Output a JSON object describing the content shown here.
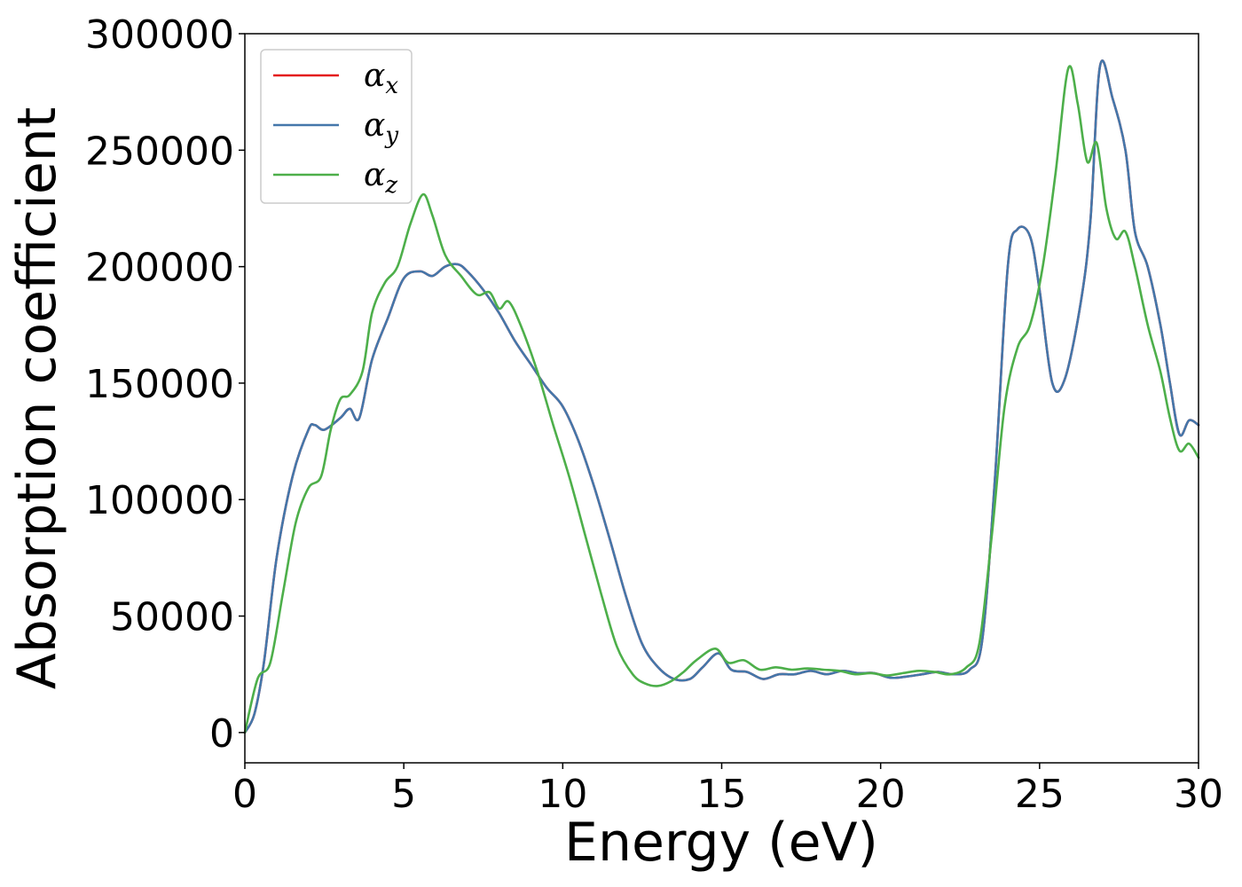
{
  "chart_data": {
    "type": "line",
    "xlabel": "Energy (eV)",
    "ylabel": "Absorption coefficient",
    "xlim": [
      0,
      30
    ],
    "ylim": [
      -13000,
      300000
    ],
    "xticks": [
      0,
      5,
      10,
      15,
      20,
      25,
      30
    ],
    "yticks": [
      0,
      50000,
      100000,
      150000,
      200000,
      250000,
      300000
    ],
    "grid": false,
    "legend_position": "top-left",
    "series": [
      {
        "name": "αx",
        "symbol": "α",
        "subscript": "x",
        "color": "#e41a1c",
        "x": [
          0,
          0.3,
          0.6,
          1,
          1.5,
          2,
          2.2,
          2.5,
          3,
          3.3,
          3.6,
          4,
          4.5,
          5,
          5.5,
          5.9,
          6.3,
          6.7,
          7,
          7.5,
          8,
          8.5,
          9,
          9.5,
          10,
          10.5,
          11,
          11.5,
          12,
          12.5,
          13,
          13.5,
          14,
          14.4,
          14.9,
          15.3,
          15.8,
          16.3,
          16.8,
          17.3,
          17.8,
          18.3,
          18.8,
          19.3,
          19.8,
          20.3,
          20.8,
          21.3,
          21.8,
          22.3,
          22.8,
          23.2,
          23.6,
          24,
          24.3,
          24.7,
          25,
          25.4,
          25.8,
          26.3,
          26.6,
          26.9,
          27.3,
          27.7,
          28,
          28.4,
          28.8,
          29.1,
          29.4,
          29.7,
          30
        ],
        "y": [
          0,
          8000,
          30000,
          75000,
          110000,
          130000,
          132000,
          130000,
          135000,
          139000,
          135000,
          160000,
          178000,
          195000,
          198000,
          196000,
          200000,
          201000,
          198000,
          190000,
          180000,
          168000,
          158000,
          148000,
          140000,
          125000,
          105000,
          82000,
          58000,
          38000,
          28000,
          23000,
          23000,
          28000,
          34000,
          27000,
          26000,
          23000,
          25000,
          25000,
          26500,
          25000,
          26500,
          25500,
          25500,
          23500,
          24000,
          25000,
          26000,
          25000,
          27000,
          40000,
          110000,
          200000,
          216000,
          213000,
          190000,
          150000,
          152000,
          185000,
          220000,
          286000,
          272000,
          250000,
          215000,
          200000,
          175000,
          150000,
          128000,
          134000,
          132000
        ]
      },
      {
        "name": "αy",
        "symbol": "α",
        "subscript": "y",
        "color": "#4477aa",
        "x": [
          0,
          0.3,
          0.6,
          1,
          1.5,
          2,
          2.2,
          2.5,
          3,
          3.3,
          3.6,
          4,
          4.5,
          5,
          5.5,
          5.9,
          6.3,
          6.7,
          7,
          7.5,
          8,
          8.5,
          9,
          9.5,
          10,
          10.5,
          11,
          11.5,
          12,
          12.5,
          13,
          13.5,
          14,
          14.4,
          14.9,
          15.3,
          15.8,
          16.3,
          16.8,
          17.3,
          17.8,
          18.3,
          18.8,
          19.3,
          19.8,
          20.3,
          20.8,
          21.3,
          21.8,
          22.3,
          22.8,
          23.2,
          23.6,
          24,
          24.3,
          24.7,
          25,
          25.4,
          25.8,
          26.3,
          26.6,
          26.9,
          27.3,
          27.7,
          28,
          28.4,
          28.8,
          29.1,
          29.4,
          29.7,
          30
        ],
        "y": [
          0,
          8000,
          30000,
          75000,
          110000,
          130000,
          132000,
          130000,
          135000,
          139000,
          135000,
          160000,
          178000,
          195000,
          198000,
          196000,
          200000,
          201000,
          198000,
          190000,
          180000,
          168000,
          158000,
          148000,
          140000,
          125000,
          105000,
          82000,
          58000,
          38000,
          28000,
          23000,
          23000,
          28000,
          34000,
          27000,
          26000,
          23000,
          25000,
          25000,
          26500,
          25000,
          26500,
          25500,
          25500,
          23500,
          24000,
          25000,
          26000,
          25000,
          27000,
          40000,
          110000,
          200000,
          216000,
          213000,
          190000,
          150000,
          152000,
          185000,
          220000,
          286000,
          272000,
          250000,
          215000,
          200000,
          175000,
          150000,
          128000,
          134000,
          132000
        ]
      },
      {
        "name": "αz",
        "symbol": "α",
        "subscript": "z",
        "color": "#4daf4a",
        "x": [
          0,
          0.4,
          0.8,
          1.2,
          1.6,
          2,
          2.4,
          2.7,
          3,
          3.3,
          3.7,
          4,
          4.4,
          4.8,
          5.2,
          5.6,
          5.9,
          6.3,
          6.8,
          7.3,
          7.7,
          8,
          8.3,
          8.7,
          9.2,
          9.7,
          10.2,
          10.7,
          11.2,
          11.7,
          12.2,
          12.6,
          13,
          13.4,
          13.8,
          14.2,
          14.8,
          15.2,
          15.7,
          16.2,
          16.7,
          17.2,
          17.7,
          18.2,
          18.7,
          19.2,
          19.7,
          20.2,
          20.7,
          21.2,
          21.7,
          22.2,
          22.7,
          23.1,
          23.5,
          23.9,
          24.3,
          24.7,
          25.1,
          25.5,
          25.9,
          26.2,
          26.5,
          26.8,
          27.1,
          27.4,
          27.7,
          28,
          28.4,
          28.8,
          29.1,
          29.4,
          29.7,
          30
        ],
        "y": [
          0,
          23000,
          30000,
          60000,
          90000,
          105000,
          110000,
          130000,
          143000,
          145000,
          155000,
          180000,
          193000,
          200000,
          218000,
          231000,
          222000,
          205000,
          196000,
          188000,
          189000,
          182000,
          185000,
          174000,
          155000,
          132000,
          110000,
          85000,
          60000,
          37000,
          25000,
          21000,
          20000,
          22000,
          26000,
          31000,
          36000,
          30000,
          31000,
          27000,
          28000,
          27000,
          27500,
          27000,
          26500,
          25000,
          25500,
          24500,
          25500,
          26500,
          26000,
          25000,
          28000,
          38000,
          85000,
          140000,
          165000,
          175000,
          200000,
          240000,
          285000,
          270000,
          245000,
          253000,
          225000,
          212000,
          215000,
          200000,
          175000,
          155000,
          135000,
          121000,
          124000,
          118000
        ]
      }
    ]
  }
}
